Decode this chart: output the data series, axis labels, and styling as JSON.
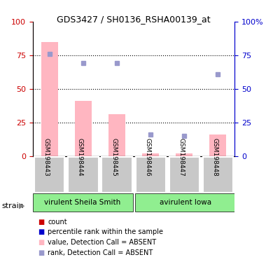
{
  "title": "GDS3427 / SH0136_RSHA00139_at",
  "samples": [
    "GSM198443",
    "GSM198444",
    "GSM198445",
    "GSM198446",
    "GSM198447",
    "GSM198448"
  ],
  "groups": [
    {
      "name": "virulent Sheila Smith",
      "samples": [
        "GSM198443",
        "GSM198444",
        "GSM198445"
      ],
      "color": "#90EE90"
    },
    {
      "name": "avirulent Iowa",
      "samples": [
        "GSM198446",
        "GSM198447",
        "GSM198448"
      ],
      "color": "#90EE90"
    }
  ],
  "bar_values_absent": [
    85,
    41,
    31,
    2,
    2,
    16
  ],
  "dot_values_absent": [
    76,
    69,
    69,
    16,
    15,
    61
  ],
  "bar_color_absent": "#FFB6C1",
  "dot_color_absent": "#9999CC",
  "ylim_left": [
    0,
    100
  ],
  "ylim_right": [
    0,
    100
  ],
  "yticks_left": [
    0,
    25,
    50,
    75,
    100
  ],
  "yticks_right": [
    0,
    25,
    50,
    75,
    100
  ],
  "ylabel_left_color": "#CC0000",
  "ylabel_right_color": "#0000CC",
  "dotted_lines": [
    25,
    50,
    75
  ],
  "strain_label": "strain",
  "legend": [
    {
      "label": "count",
      "color": "#CC0000",
      "marker": "s"
    },
    {
      "label": "percentile rank within the sample",
      "color": "#0000CC",
      "marker": "s"
    },
    {
      "label": "value, Detection Call = ABSENT",
      "color": "#FFB6C1",
      "marker": "s"
    },
    {
      "label": "rank, Detection Call = ABSENT",
      "color": "#9999CC",
      "marker": "s"
    }
  ]
}
